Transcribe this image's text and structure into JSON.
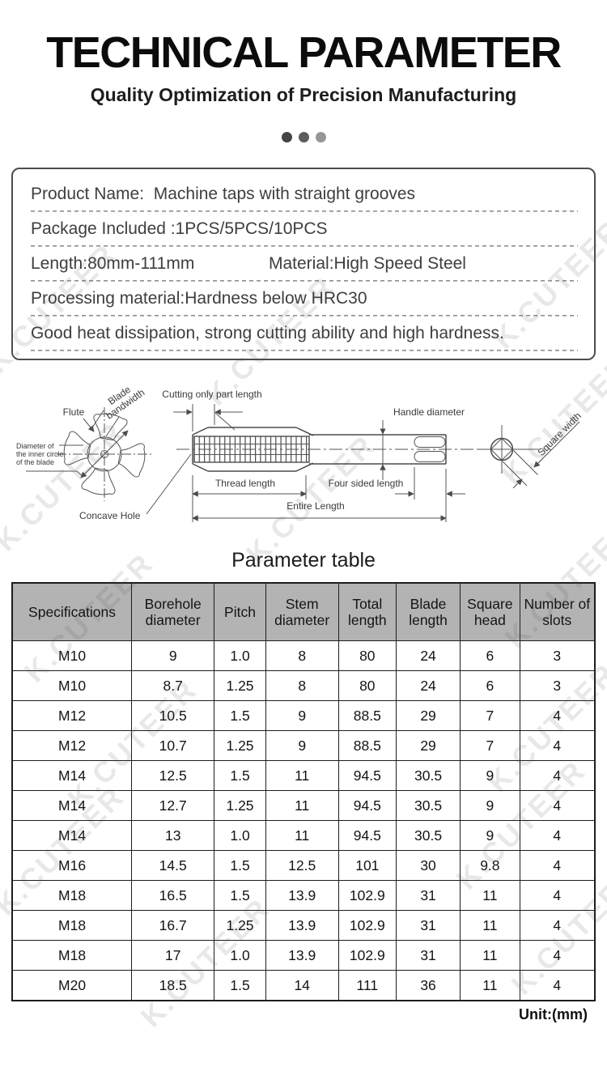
{
  "header": {
    "title": "TECHNICAL PARAMETER",
    "subtitle": "Quality Optimization of Precision Manufacturing",
    "dots_colors": [
      "#454545",
      "#5c5c5c",
      "#969696"
    ]
  },
  "watermark": {
    "text": "K.CUTEER"
  },
  "info_box": {
    "row1": "Product Name:  Machine taps with straight grooves",
    "row2": "Package Included :1PCS/5PCS/10PCS",
    "row3a": "Length:80mm-111mm",
    "row3b": "Material:High Speed Steel",
    "row4": "Processing material:Hardness below HRC30",
    "row5": "Good heat dissipation, strong cutting ability and high hardness."
  },
  "diagram": {
    "labels": {
      "blade_line1": "Blade",
      "blade_line2": "bandwidth",
      "flute": "Flute",
      "inner_circle_1": "Diameter of",
      "inner_circle_2": "the inner circle",
      "inner_circle_3": "of the blade",
      "concave_hole": "Concave Hole",
      "cutting_length": "Cutting only part length",
      "handle_diameter": "Handle diameter",
      "thread_length": "Thread length",
      "four_sided_length": "Four sided length",
      "entire_length": "Entire Length",
      "square_width": "Square width"
    }
  },
  "table": {
    "title": "Parameter table",
    "unit": "Unit:(mm)",
    "headers": [
      "Specifications",
      "Borehole diameter",
      "Pitch",
      "Stem diameter",
      "Total length",
      "Blade length",
      "Square head",
      "Number of slots"
    ],
    "rows": [
      [
        "M10",
        "9",
        "1.0",
        "8",
        "80",
        "24",
        "6",
        "3"
      ],
      [
        "M10",
        "8.7",
        "1.25",
        "8",
        "80",
        "24",
        "6",
        "3"
      ],
      [
        "M12",
        "10.5",
        "1.5",
        "9",
        "88.5",
        "29",
        "7",
        "4"
      ],
      [
        "M12",
        "10.7",
        "1.25",
        "9",
        "88.5",
        "29",
        "7",
        "4"
      ],
      [
        "M14",
        "12.5",
        "1.5",
        "11",
        "94.5",
        "30.5",
        "9",
        "4"
      ],
      [
        "M14",
        "12.7",
        "1.25",
        "11",
        "94.5",
        "30.5",
        "9",
        "4"
      ],
      [
        "M14",
        "13",
        "1.0",
        "11",
        "94.5",
        "30.5",
        "9",
        "4"
      ],
      [
        "M16",
        "14.5",
        "1.5",
        "12.5",
        "101",
        "30",
        "9.8",
        "4"
      ],
      [
        "M18",
        "16.5",
        "1.5",
        "13.9",
        "102.9",
        "31",
        "11",
        "4"
      ],
      [
        "M18",
        "16.7",
        "1.25",
        "13.9",
        "102.9",
        "31",
        "11",
        "4"
      ],
      [
        "M18",
        "17",
        "1.0",
        "13.9",
        "102.9",
        "31",
        "11",
        "4"
      ],
      [
        "M20",
        "18.5",
        "1.5",
        "14",
        "111",
        "36",
        "11",
        "4"
      ]
    ]
  },
  "colors": {
    "table_header_bg": "#b3b3b3",
    "table_border": "#1d1d1d",
    "diagram_line": "#4b4b4b",
    "watermark": "#d2d2d2"
  }
}
